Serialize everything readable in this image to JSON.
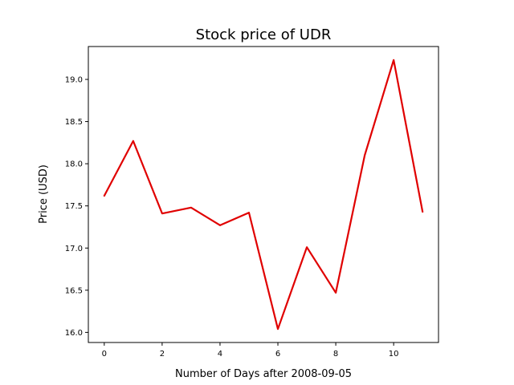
{
  "chart_data": {
    "type": "line",
    "title": "Stock price of UDR",
    "xlabel": "Number of Days after 2008-09-05",
    "ylabel": "Price (USD)",
    "x": [
      0,
      1,
      2,
      3,
      4,
      5,
      6,
      7,
      8,
      9,
      10,
      11
    ],
    "series": [
      {
        "values": [
          17.62,
          18.27,
          17.41,
          17.48,
          17.27,
          17.42,
          16.04,
          17.01,
          16.47,
          18.1,
          19.23,
          17.43
        ],
        "color": "#e00000"
      }
    ],
    "xlim": [
      -0.55,
      11.55
    ],
    "ylim": [
      15.88,
      19.39
    ],
    "xticks": [
      0,
      2,
      4,
      6,
      8,
      10
    ],
    "yticks": [
      16.0,
      16.5,
      17.0,
      17.5,
      18.0,
      18.5,
      19.0
    ],
    "ytick_labels": [
      "16.0",
      "16.5",
      "17.0",
      "17.5",
      "18.0",
      "18.5",
      "19.0"
    ],
    "grid": false,
    "legend": "none"
  }
}
